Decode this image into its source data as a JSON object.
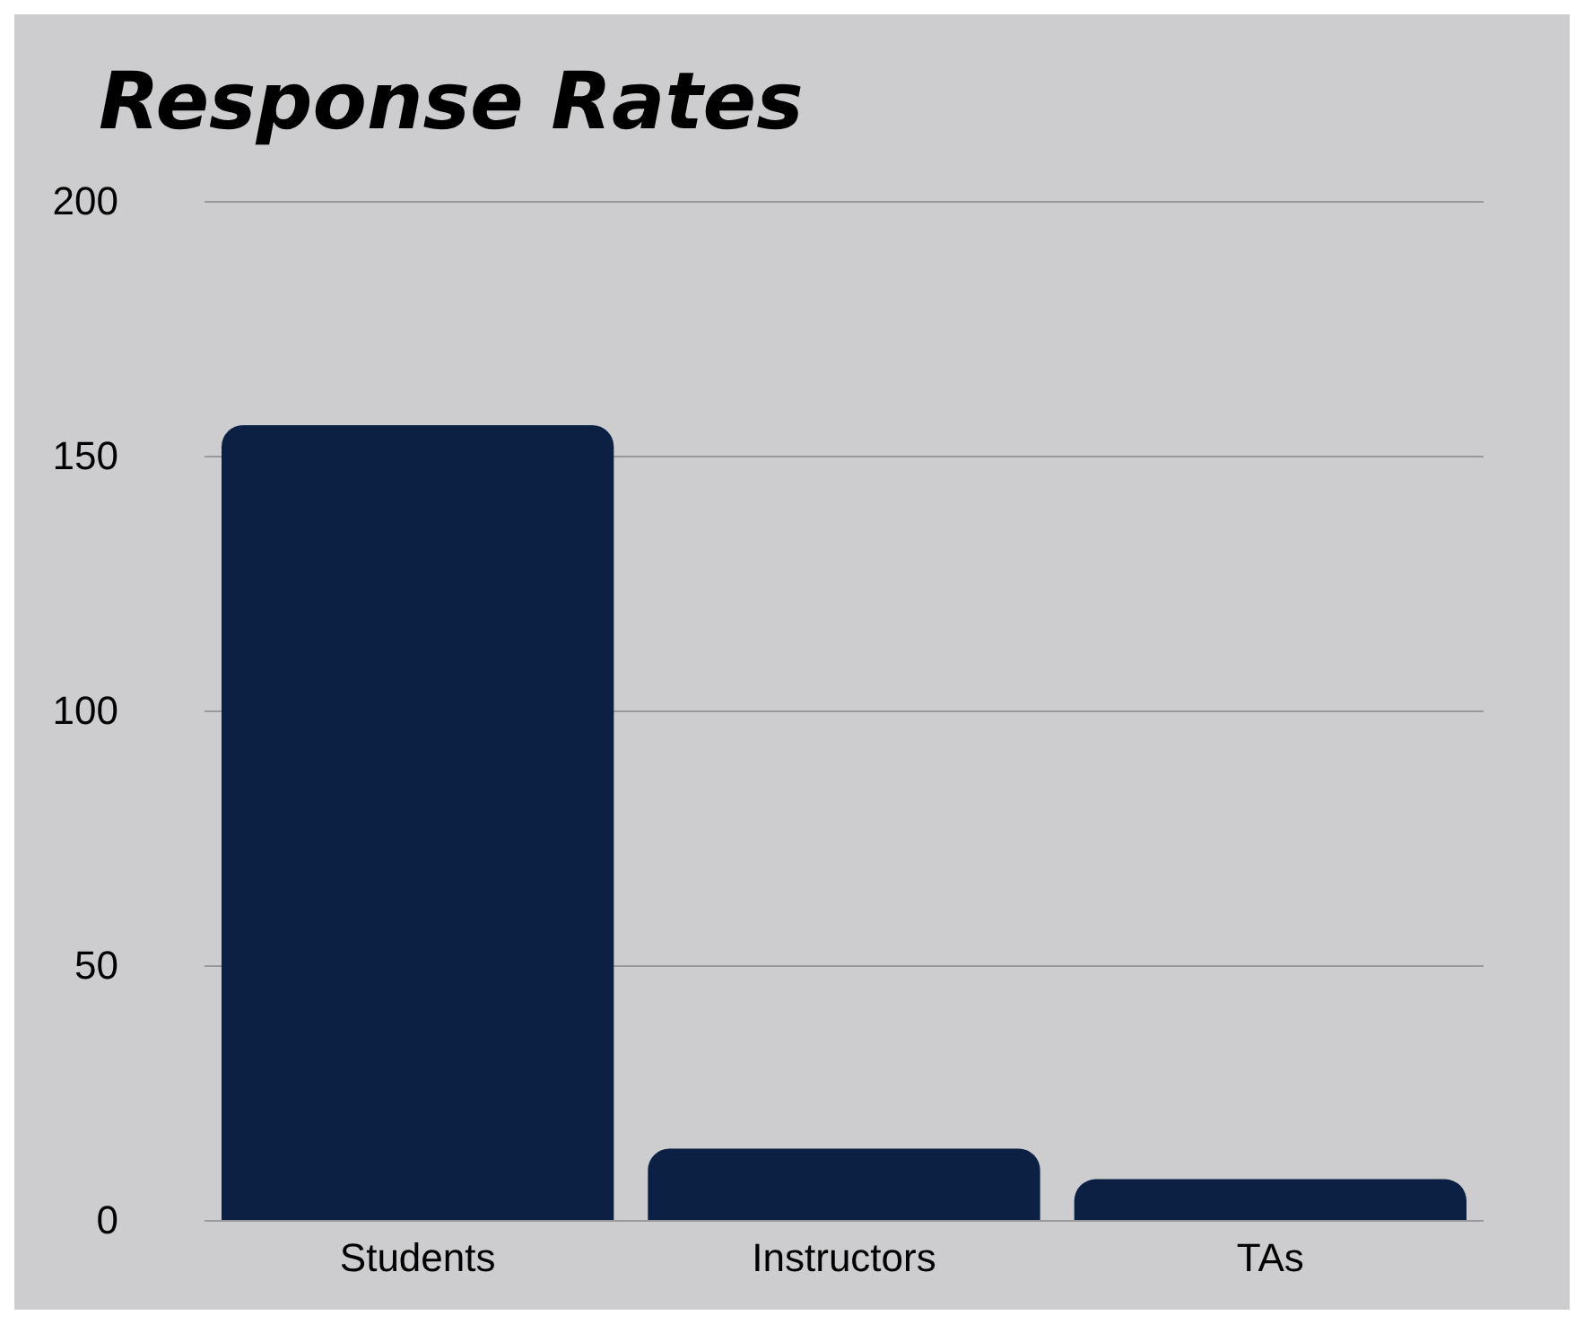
{
  "chart_data": {
    "type": "bar",
    "title": "Response Rates",
    "categories": [
      "Students",
      "Instructors",
      "TAs"
    ],
    "values": [
      156,
      14,
      8
    ],
    "color": "#0c2044",
    "ylim": [
      0,
      200
    ],
    "yticks": [
      0,
      50,
      100,
      150,
      200
    ],
    "grid": "y"
  }
}
